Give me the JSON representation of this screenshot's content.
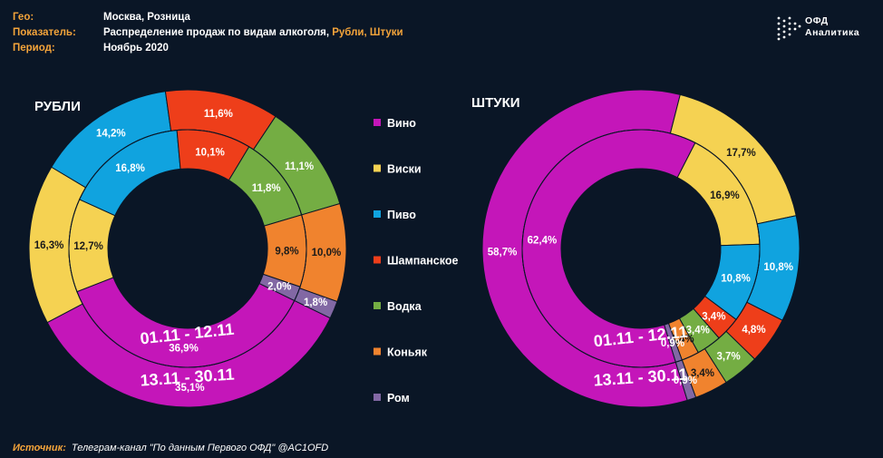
{
  "header": {
    "geo_label": "Гео:",
    "geo_value": "Москва, Розница",
    "indicator_label": "Показатель:",
    "indicator_value": "Распределение продаж по видам алкоголя, ",
    "indicator_highlight": "Рубли, Штуки",
    "period_label": "Период:",
    "period_value": "Ноябрь 2020"
  },
  "logo": {
    "line1": "ОФД",
    "line2": "Аналитика"
  },
  "source": {
    "label": "Источник:",
    "text": "Телеграм-канал \"По данным Первого ОФД\" @AC1OFD"
  },
  "chart_data": {
    "type": "pie",
    "categories": [
      "Вино",
      "Виски",
      "Пиво",
      "Шампанское",
      "Водка",
      "Коньяк",
      "Ром"
    ],
    "colors": [
      "#c416b9",
      "#f5d252",
      "#10a3df",
      "#ee3e1a",
      "#74ad43",
      "#f0832e",
      "#8268a4"
    ],
    "ring_labels": {
      "inner": "01.11 - 12.11",
      "outer": "13.11 - 30.11"
    },
    "charts": [
      {
        "title": "РУБЛИ",
        "inner_values": [
          36.9,
          12.7,
          16.8,
          10.1,
          11.8,
          9.8,
          2.0
        ],
        "outer_values": [
          35.1,
          16.3,
          14.2,
          11.6,
          11.1,
          10.0,
          1.8
        ]
      },
      {
        "title": "ШТУКИ",
        "inner_values": [
          62.4,
          16.9,
          10.8,
          3.4,
          3.4,
          2.4,
          0.9
        ],
        "outer_values": [
          58.7,
          17.7,
          10.8,
          4.8,
          3.7,
          3.4,
          0.9
        ]
      }
    ]
  }
}
